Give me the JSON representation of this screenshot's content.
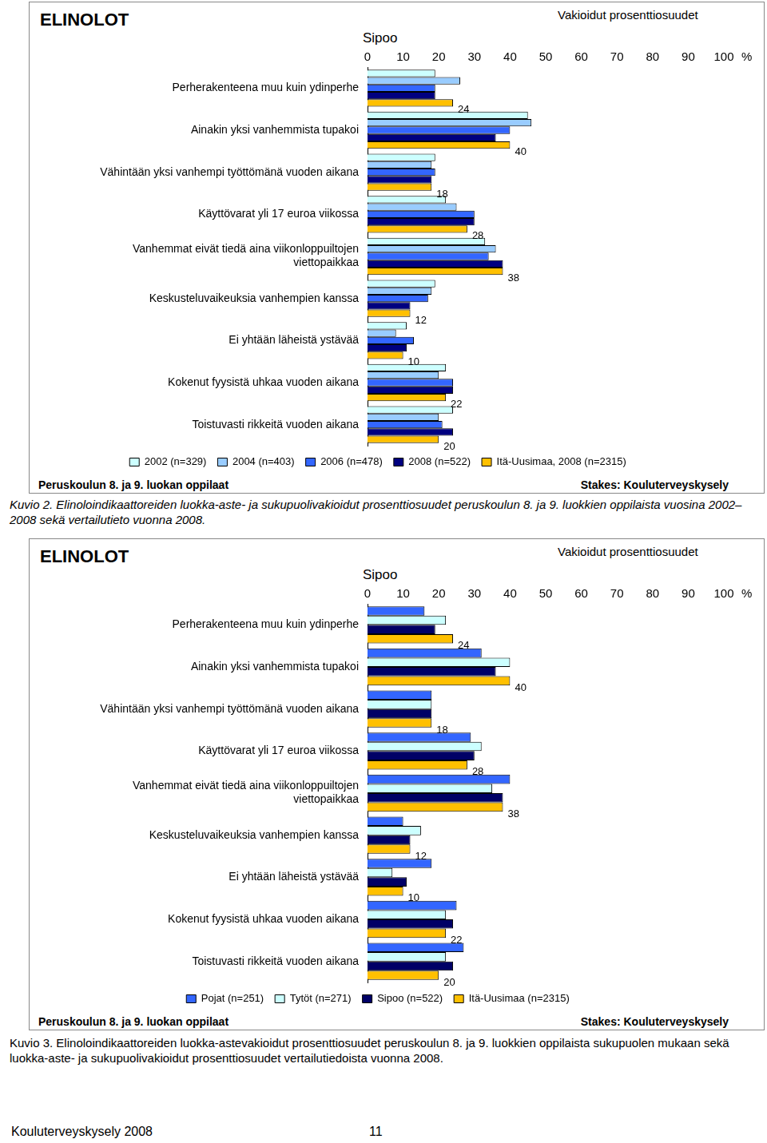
{
  "chart_data": [
    {
      "type": "bar",
      "orientation": "horizontal",
      "title": "ELINOLOT",
      "subtitle": "Sipoo",
      "xlabel": "%",
      "annotations": {
        "note": "Vakioidut prosenttiosuudet",
        "population": "Peruskoulun 8. ja 9. luokan oppilaat",
        "source": "Stakes: Kouluterveyskysely",
        "caption": "Kuvio 2. Elinoloindikaattoreiden luokka-aste- ja sukupuolivakioidut prosenttiosuudet peruskoulun 8. ja 9. luokkien oppilaista vuosina 2002–2008 sekä vertailutieto vuonna 2008."
      },
      "categories": [
        "Perherakenteena muu kuin ydinperhe",
        "Ainakin yksi vanhemmista tupakoi",
        "Vähintään yksi vanhempi työttömänä vuoden aikana",
        "Käyttövarat yli 17 euroa viikossa",
        [
          "Vanhemmat eivät tiedä aina viikonloppuiltojen",
          "viettopaikkaa"
        ],
        "Keskusteluvaikeuksia vanhempien kanssa",
        "Ei yhtään läheistä ystävää",
        "Kokenut fyysistä uhkaa vuoden aikana",
        "Toistuvasti rikkeitä vuoden aikana"
      ],
      "series": [
        {
          "name": "2002 (n=329)",
          "color": "#ccffff",
          "values": [
            19,
            45,
            19,
            22,
            33,
            19,
            11,
            22,
            24
          ]
        },
        {
          "name": "2004 (n=403)",
          "color": "#99ccff",
          "values": [
            26,
            46,
            18,
            25,
            36,
            18,
            8,
            20,
            20
          ]
        },
        {
          "name": "2006 (n=478)",
          "color": "#3366ff",
          "values": [
            19,
            40,
            19,
            30,
            34,
            17,
            13,
            24,
            21
          ]
        },
        {
          "name": "2008 (n=522)",
          "color": "#000080",
          "values": [
            19,
            36,
            18,
            30,
            38,
            12,
            11,
            24,
            24
          ]
        },
        {
          "name": "Itä-Uusimaa, 2008 (n=2315)",
          "color": "#ffc000",
          "data_labels": true,
          "values": [
            24,
            40,
            18,
            28,
            38,
            12,
            10,
            22,
            20
          ]
        }
      ],
      "xlim": [
        0,
        100
      ],
      "xticks": [
        0,
        10,
        20,
        30,
        40,
        50,
        60,
        70,
        80,
        90,
        100
      ],
      "grid": false,
      "legend": "bottom"
    },
    {
      "type": "bar",
      "orientation": "horizontal",
      "title": "ELINOLOT",
      "subtitle": "Sipoo",
      "xlabel": "%",
      "annotations": {
        "note": "Vakioidut prosenttiosuudet",
        "population": "Peruskoulun 8. ja 9. luokan oppilaat",
        "source": "Stakes: Kouluterveyskysely",
        "caption": "Kuvio 3. Elinoloindikaattoreiden luokka-astevakioidut prosenttiosuudet peruskoulun 8. ja 9. luokkien oppilaista sukupuolen mukaan sekä luokka-aste- ja sukupuolivakioidut prosenttiosuudet vertailutiedoista vuonna 2008."
      },
      "categories": [
        "Perherakenteena muu kuin ydinperhe",
        "Ainakin yksi vanhemmista tupakoi",
        "Vähintään yksi vanhempi työttömänä vuoden aikana",
        "Käyttövarat yli 17 euroa viikossa",
        [
          "Vanhemmat eivät tiedä aina viikonloppuiltojen",
          "viettopaikkaa"
        ],
        "Keskusteluvaikeuksia vanhempien kanssa",
        "Ei yhtään läheistä ystävää",
        "Kokenut fyysistä uhkaa vuoden aikana",
        "Toistuvasti rikkeitä vuoden aikana"
      ],
      "series": [
        {
          "name": "Pojat (n=251)",
          "color": "#3366ff",
          "values": [
            16,
            32,
            18,
            29,
            40,
            10,
            18,
            25,
            27
          ]
        },
        {
          "name": "Tytöt (n=271)",
          "color": "#ccffff",
          "values": [
            22,
            40,
            18,
            32,
            35,
            15,
            7,
            22,
            22
          ]
        },
        {
          "name": "Sipoo (n=522)",
          "color": "#000066",
          "values": [
            19,
            36,
            18,
            30,
            38,
            12,
            11,
            24,
            24
          ]
        },
        {
          "name": "Itä-Uusimaa (n=2315)",
          "color": "#ffc000",
          "data_labels": true,
          "values": [
            24,
            40,
            18,
            28,
            38,
            12,
            10,
            22,
            20
          ]
        }
      ],
      "xlim": [
        0,
        100
      ],
      "xticks": [
        0,
        10,
        20,
        30,
        40,
        50,
        60,
        70,
        80,
        90,
        100
      ],
      "grid": false,
      "legend": "bottom"
    }
  ],
  "page": {
    "footer": "Kouluterveyskysely 2008",
    "page_number": "11"
  }
}
